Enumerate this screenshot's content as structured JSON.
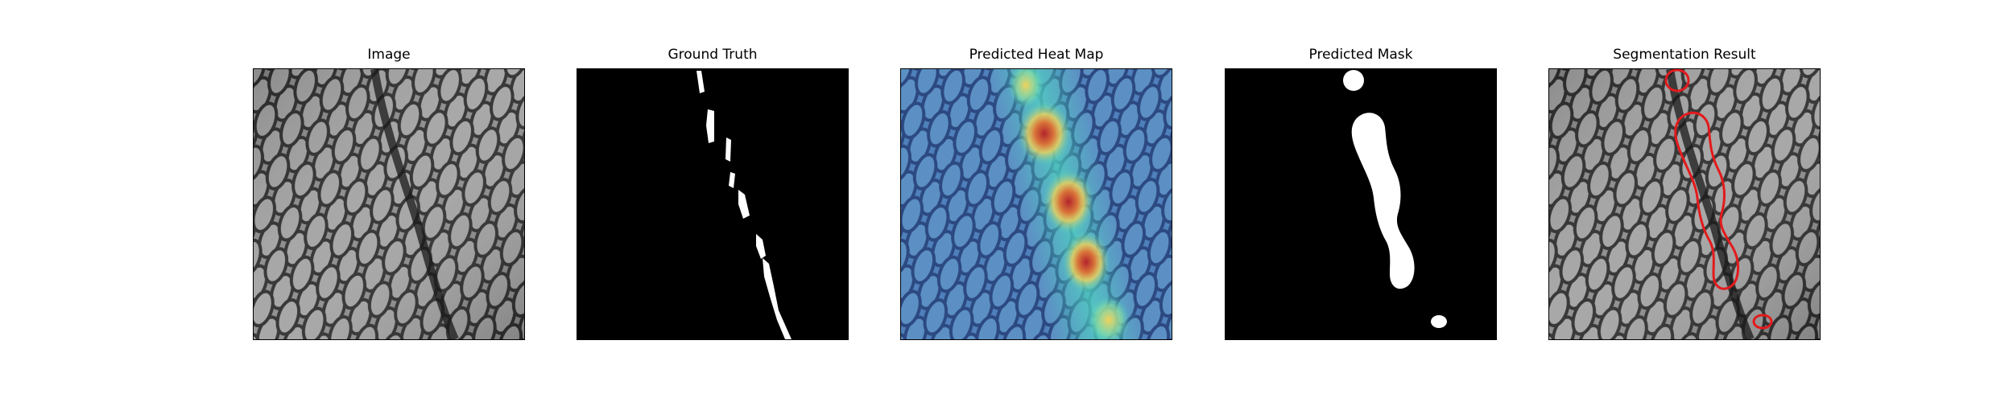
{
  "panels": [
    {
      "id": "image",
      "title": "Image"
    },
    {
      "id": "ground-truth",
      "title": "Ground Truth"
    },
    {
      "id": "heatmap",
      "title": "Predicted Heat Map"
    },
    {
      "id": "mask",
      "title": "Predicted Mask"
    },
    {
      "id": "segmentation",
      "title": "Segmentation Result"
    }
  ],
  "colors": {
    "background": "#ffffff",
    "texture_light": "#9a9a9a",
    "texture_dark": "#2a2a2a",
    "mask_foreground": "#ffffff",
    "mask_background": "#000000",
    "heat_low": "#1f3fa8",
    "heat_mid": "#4fd3c0",
    "heat_warm": "#f2d25a",
    "heat_high": "#b3242b",
    "contour": "#e31a1c"
  }
}
